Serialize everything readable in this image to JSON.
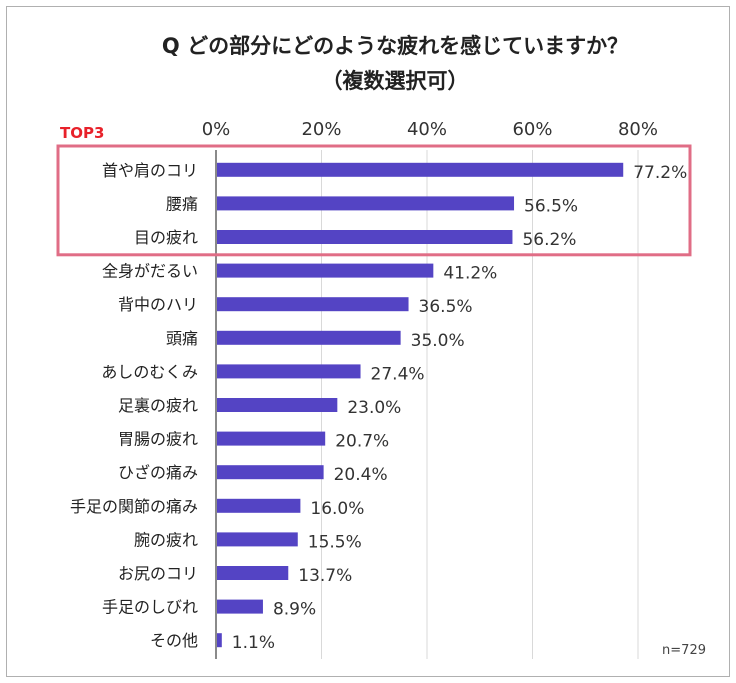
{
  "chart_data": {
    "type": "bar",
    "orientation": "horizontal",
    "title_line1": "Q どの部分にどのような疲れを感じていますか？",
    "title_line2": "（複数選択可）",
    "categories": [
      "首や肩のコリ",
      "腰痛",
      "目の疲れ",
      "全身がだるい",
      "背中のハリ",
      "頭痛",
      "あしのむくみ",
      "足裏の疲れ",
      "胃腸の疲れ",
      "ひざの痛み",
      "手足の関節の痛み",
      "腕の疲れ",
      "お尻のコリ",
      "手足のしびれ",
      "その他"
    ],
    "values": [
      77.2,
      56.5,
      56.2,
      41.2,
      36.5,
      35.0,
      27.4,
      23.0,
      20.7,
      20.4,
      16.0,
      15.5,
      13.7,
      8.9,
      1.1
    ],
    "value_labels": [
      "77.2%",
      "56.5%",
      "56.2%",
      "41.2%",
      "36.5%",
      "35.0%",
      "27.4%",
      "23.0%",
      "20.7%",
      "20.4%",
      "16.0%",
      "15.5%",
      "13.7%",
      "8.9%",
      "1.1%"
    ],
    "xlim": [
      0,
      80
    ],
    "ticks": [
      0,
      20,
      40,
      60,
      80
    ],
    "tick_labels": [
      "0%",
      "20%",
      "40%",
      "60%",
      "80%"
    ],
    "axis_position": "top",
    "grid": true,
    "highlight_label": "TOP3",
    "highlight_count": 3,
    "sample_size": "n=729",
    "colors": {
      "bar": "#5444c4",
      "highlight": "#e06d86",
      "highlight_text": "#e8212a",
      "axis": "#8a8a8a",
      "grid": "#d9d9d9",
      "frame": "#b0b0b0"
    }
  }
}
